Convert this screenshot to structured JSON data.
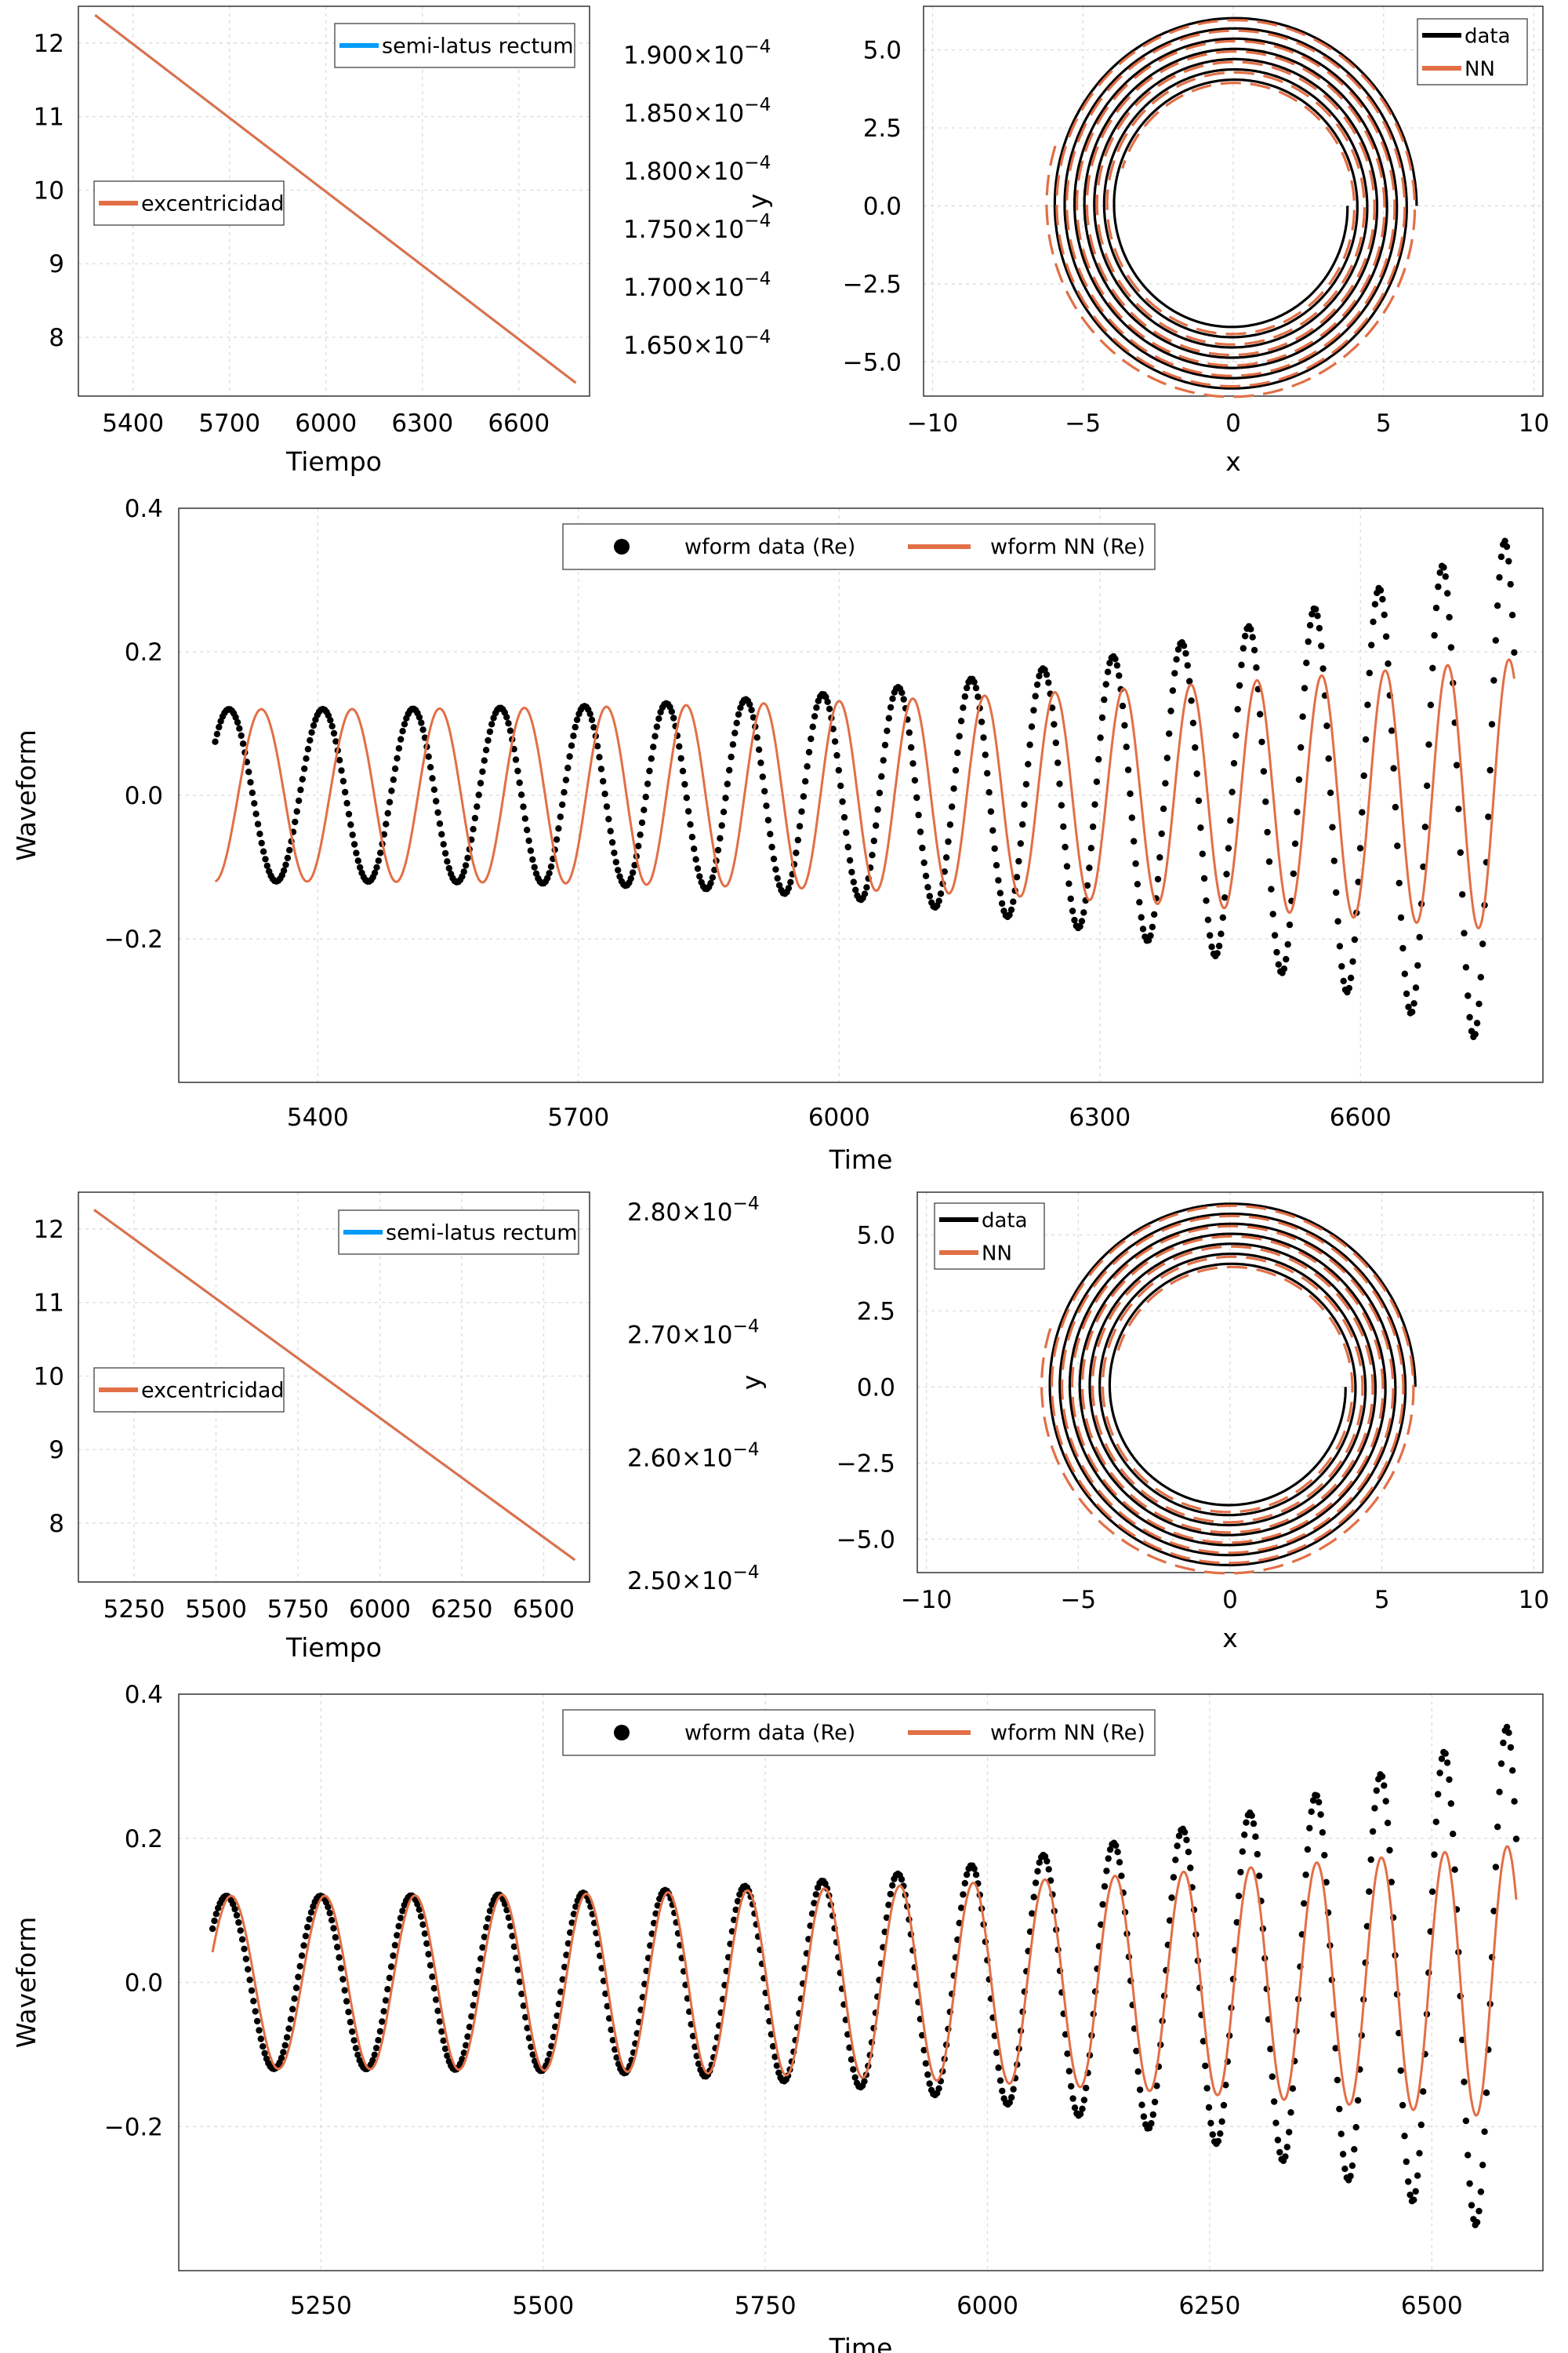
{
  "colors": {
    "data": "#000000",
    "nn": "#e26f46",
    "semilatus": "#009af9",
    "grid": "#d9d9d9",
    "frame": "#333333"
  },
  "chart_data": [
    {
      "id": "top-params",
      "type": "line",
      "xlabel": "Tiempo",
      "xticks": [
        5400,
        5700,
        6000,
        6300,
        6600
      ],
      "xlim": [
        5230,
        6820
      ],
      "ylim_left": [
        7.2,
        12.5
      ],
      "yticks_left": [
        "8",
        "9",
        "10",
        "11",
        "12"
      ],
      "yticks_right": [
        "1.650×10−4",
        "1.700×10−4",
        "1.750×10−4",
        "1.800×10−4",
        "1.850×10−4",
        "1.900×10−4"
      ],
      "series": [
        {
          "name": "semi-latus rectum",
          "axis": "left",
          "x": [
            5282,
            6777
          ],
          "y": [
            12.38,
            7.38
          ]
        },
        {
          "name": "excentricidad",
          "axis": "right",
          "x": [
            5282,
            6777
          ],
          "y": [
            12.38,
            7.38
          ]
        }
      ],
      "legend": [
        "semi-latus rectum",
        "excentricidad"
      ]
    },
    {
      "id": "top-orbit",
      "type": "line",
      "xlabel": "x",
      "ylabel": "y",
      "xticks": [
        -10,
        -5,
        0,
        5,
        10
      ],
      "yticks": [
        5.0,
        2.5,
        0.0,
        -2.5,
        -5.0
      ],
      "ytick_labels": [
        "5.0",
        "2.5",
        "0.0",
        "−2.5",
        "−5.0"
      ],
      "xtick_labels": [
        "−10",
        "−5",
        "0",
        "5",
        "10"
      ],
      "xlim": [
        -10.3,
        10.3
      ],
      "ylim": [
        -6.1,
        6.4
      ],
      "r_start": 6.1,
      "r_end": 3.8,
      "turns": 7,
      "legend": [
        "data",
        "NN"
      ]
    },
    {
      "id": "top-waveform",
      "type": "scatter",
      "xlabel": "Time",
      "ylabel": "Waveform",
      "xticks": [
        5400,
        5700,
        6000,
        6300,
        6600
      ],
      "yticks": [
        0.4,
        0.2,
        0.0,
        -0.2
      ],
      "ytick_labels": [
        "0.4",
        "0.2",
        "0.0",
        "−0.2"
      ],
      "xlim": [
        5240,
        6810
      ],
      "ylim": [
        -0.4,
        0.4
      ],
      "t_start": 5282,
      "t_end": 6777,
      "cycles": 17.3,
      "amp_start": 0.12,
      "amp_end": 0.36,
      "nn_shift": 0.35,
      "legend": [
        "wform data (Re)",
        "wform NN (Re)"
      ]
    },
    {
      "id": "bottom-params",
      "type": "line",
      "xlabel": "Tiempo",
      "xticks": [
        5250,
        5500,
        5750,
        6000,
        6250,
        6500
      ],
      "xlim": [
        5080,
        6640
      ],
      "ylim_left": [
        7.2,
        12.5
      ],
      "yticks_left": [
        "8",
        "9",
        "10",
        "11",
        "12"
      ],
      "yticks_right": [
        "2.50×10−4",
        "2.60×10−4",
        "2.70×10−4",
        "2.80×10−4"
      ],
      "series": [
        {
          "name": "semi-latus rectum",
          "axis": "left",
          "x": [
            5128,
            6595
          ],
          "y": [
            12.26,
            7.5
          ]
        },
        {
          "name": "excentricidad",
          "axis": "right",
          "x": [
            5128,
            6595
          ],
          "y": [
            12.26,
            7.5
          ]
        }
      ],
      "legend": [
        "semi-latus rectum",
        "excentricidad"
      ]
    },
    {
      "id": "bottom-orbit",
      "type": "line",
      "xlabel": "x",
      "ylabel": "y",
      "xticks": [
        -10,
        -5,
        0,
        5,
        10
      ],
      "yticks": [
        5.0,
        2.5,
        0.0,
        -2.5,
        -5.0
      ],
      "ytick_labels": [
        "5.0",
        "2.5",
        "0.0",
        "−2.5",
        "−5.0"
      ],
      "xtick_labels": [
        "−10",
        "−5",
        "0",
        "5",
        "10"
      ],
      "xlim": [
        -10.3,
        10.3
      ],
      "ylim": [
        -6.1,
        6.4
      ],
      "r_start": 6.1,
      "r_end": 3.8,
      "turns": 7,
      "legend": [
        "data",
        "NN"
      ]
    },
    {
      "id": "bottom-waveform",
      "type": "scatter",
      "xlabel": "Time",
      "ylabel": "Waveform",
      "xticks": [
        5250,
        5500,
        5750,
        6000,
        6250,
        6500
      ],
      "yticks": [
        0.4,
        0.2,
        0.0,
        -0.2
      ],
      "ytick_labels": [
        "0.4",
        "0.2",
        "0.0",
        "−0.2"
      ],
      "xlim": [
        5090,
        6625
      ],
      "ylim": [
        -0.4,
        0.4
      ],
      "t_start": 5128,
      "t_end": 6595,
      "cycles": 17.3,
      "amp_start": 0.12,
      "amp_end": 0.36,
      "nn_shift": 0.05,
      "legend": [
        "wform data (Re)",
        "wform NN (Re)"
      ]
    }
  ]
}
